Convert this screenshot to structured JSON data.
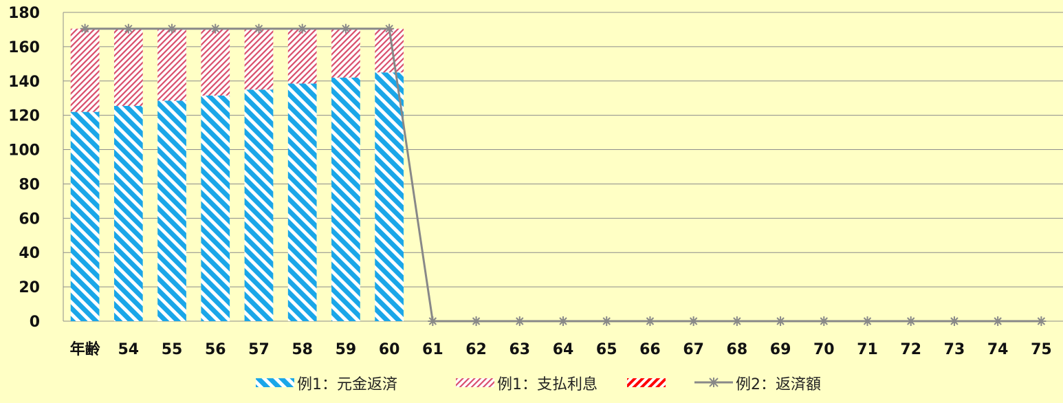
{
  "chart_data": {
    "type": "bar",
    "categories": [
      "年齢",
      "54",
      "55",
      "56",
      "57",
      "58",
      "59",
      "60",
      "61",
      "62",
      "63",
      "64",
      "65",
      "66",
      "67",
      "68",
      "69",
      "70",
      "71",
      "72",
      "73",
      "74",
      "75"
    ],
    "ylim": [
      0,
      180
    ],
    "yticks": [
      0,
      20,
      40,
      60,
      80,
      100,
      120,
      140,
      160,
      180
    ],
    "grid": true,
    "legend_position": "bottom",
    "series": [
      {
        "name": "例1：元金返済",
        "kind": "bar",
        "stack": "a",
        "color": "#1aa6e8",
        "values": [
          122,
          125.5,
          128.5,
          131.5,
          135,
          138.5,
          142,
          145,
          null,
          null,
          null,
          null,
          null,
          null,
          null,
          null,
          null,
          null,
          null,
          null,
          null,
          null,
          null
        ]
      },
      {
        "name": "例1：支払利息",
        "kind": "bar",
        "stack": "a",
        "color": "#d94c6a",
        "values": [
          48.5,
          45,
          42,
          39,
          35.5,
          32,
          28.5,
          25.5,
          null,
          null,
          null,
          null,
          null,
          null,
          null,
          null,
          null,
          null,
          null,
          null,
          null,
          null,
          null
        ]
      },
      {
        "name": "",
        "kind": "bar",
        "stack": "b",
        "color": "#ff0000",
        "values": [
          null,
          null,
          null,
          null,
          null,
          null,
          null,
          null,
          null,
          null,
          null,
          null,
          null,
          null,
          null,
          null,
          null,
          null,
          null,
          null,
          null,
          null,
          null
        ]
      },
      {
        "name": "例2：返済額",
        "kind": "line",
        "color": "#888888",
        "values": [
          170.5,
          170.5,
          170.5,
          170.5,
          170.5,
          170.5,
          170.5,
          170.5,
          0,
          0,
          0,
          0,
          0,
          0,
          0,
          0,
          0,
          0,
          0,
          0,
          0,
          0,
          0
        ]
      }
    ]
  }
}
